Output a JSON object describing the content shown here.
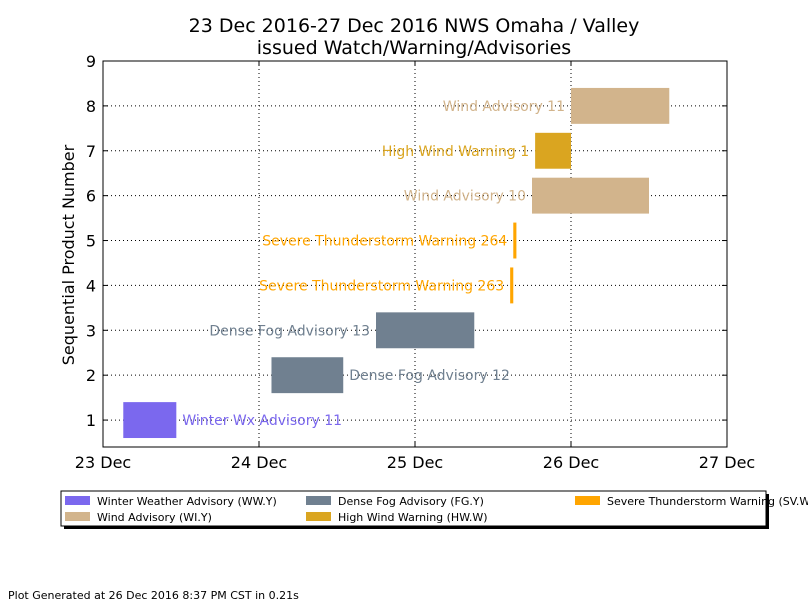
{
  "chart_data": {
    "type": "gantt",
    "title_line1": "23 Dec 2016-27 Dec 2016 NWS Omaha / Valley",
    "title_line2": "issued Watch/Warning/Advisories",
    "ylabel": "Sequential Product Number",
    "xlabel": "",
    "xlim": [
      0,
      4
    ],
    "ylim": [
      0.4,
      9
    ],
    "grid": true,
    "x_ticks": [
      {
        "value": 0,
        "label": "23 Dec"
      },
      {
        "value": 1,
        "label": "24 Dec"
      },
      {
        "value": 2,
        "label": "25 Dec"
      },
      {
        "value": 3,
        "label": "26 Dec"
      },
      {
        "value": 4,
        "label": "27 Dec"
      }
    ],
    "y_ticks": [
      {
        "value": 1,
        "label": "1"
      },
      {
        "value": 2,
        "label": "2"
      },
      {
        "value": 3,
        "label": "3"
      },
      {
        "value": 4,
        "label": "4"
      },
      {
        "value": 5,
        "label": "5"
      },
      {
        "value": 6,
        "label": "6"
      },
      {
        "value": 7,
        "label": "7"
      },
      {
        "value": 8,
        "label": "8"
      },
      {
        "value": 9,
        "label": "9"
      }
    ],
    "products": [
      {
        "y": 1,
        "start": 0.13,
        "end": 0.47,
        "label": "Winter Wx Advisory 11",
        "label_side": "right",
        "color": "#7B68EE"
      },
      {
        "y": 2,
        "start": 1.08,
        "end": 1.54,
        "label": "Dense Fog Advisory 12",
        "label_side": "right",
        "color": "#708090"
      },
      {
        "y": 3,
        "start": 1.75,
        "end": 2.38,
        "label": "Dense Fog Advisory 13",
        "label_side": "left",
        "color": "#708090"
      },
      {
        "y": 4,
        "start": 2.61,
        "end": 2.63,
        "label": "Severe Thunderstorm Warning 263",
        "label_side": "left",
        "color": "#FFA500"
      },
      {
        "y": 5,
        "start": 2.63,
        "end": 2.65,
        "label": "Severe Thunderstorm Warning 264",
        "label_side": "left",
        "color": "#FFA500"
      },
      {
        "y": 6,
        "start": 2.75,
        "end": 3.5,
        "label": "Wind Advisory 10",
        "label_side": "left",
        "color": "#D2B48C"
      },
      {
        "y": 7,
        "start": 2.77,
        "end": 3.0,
        "label": "High Wind Warning 1",
        "label_side": "left",
        "color": "#DAA520"
      },
      {
        "y": 8,
        "start": 3.0,
        "end": 3.63,
        "label": "Wind Advisory 11",
        "label_side": "left",
        "color": "#D2B48C"
      }
    ],
    "legend": [
      {
        "label": "Winter Weather Advisory (WW.Y)",
        "color": "#7B68EE"
      },
      {
        "label": "Dense Fog Advisory (FG.Y)",
        "color": "#708090"
      },
      {
        "label": "Severe Thunderstorm Warning (SV.W)",
        "color": "#FFA500"
      },
      {
        "label": "Wind Advisory (WI.Y)",
        "color": "#D2B48C"
      },
      {
        "label": "High Wind Warning (HW.W)",
        "color": "#DAA520"
      }
    ],
    "legend_placement": "bottom"
  },
  "footer": "Plot Generated at 26 Dec 2016 8:37 PM CST in 0.21s"
}
